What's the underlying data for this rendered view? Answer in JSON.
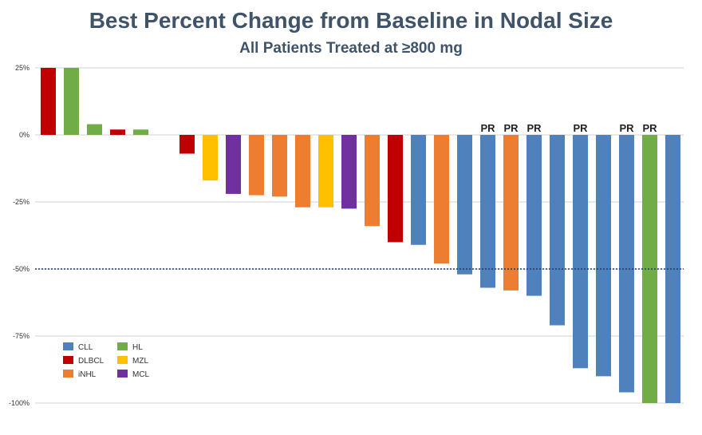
{
  "header": {
    "title": "Best Percent Change from Baseline in Nodal Size",
    "subtitle": "All Patients Treated at ≥800 mg"
  },
  "colors": {
    "CLL": "#4f81bd",
    "DLBCL": "#c00000",
    "iNHL": "#ed7d31",
    "HL": "#70ad47",
    "MZL": "#ffc000",
    "MCL": "#7030a0",
    "reference_line": "#1f3864",
    "gridline": "#d0d0d0"
  },
  "chart_data": {
    "type": "bar",
    "title": "Best Percent Change from Baseline in Nodal Size",
    "subtitle": "All Patients Treated at ≥800 mg",
    "ylim": [
      -100,
      25
    ],
    "yticks": [
      25,
      0,
      -25,
      -50,
      -75,
      -100
    ],
    "ytick_labels": [
      "25%",
      "0%",
      "-25%",
      "-50%",
      "-75%",
      "-100%"
    ],
    "grid": true,
    "reference_line": -50,
    "legend": {
      "placement": "bottom-left",
      "entries": [
        "CLL",
        "DLBCL",
        "iNHL",
        "HL",
        "MZL",
        "MCL"
      ]
    },
    "bars": [
      {
        "group": "DLBCL",
        "value": 25,
        "label": ""
      },
      {
        "group": "HL",
        "value": 25,
        "label": ""
      },
      {
        "group": "HL",
        "value": 4,
        "label": ""
      },
      {
        "group": "DLBCL",
        "value": 2,
        "label": ""
      },
      {
        "group": "HL",
        "value": 2,
        "label": ""
      },
      {
        "group": "",
        "value": 0,
        "label": ""
      },
      {
        "group": "DLBCL",
        "value": -7,
        "label": ""
      },
      {
        "group": "MZL",
        "value": -17,
        "label": ""
      },
      {
        "group": "MCL",
        "value": -22,
        "label": ""
      },
      {
        "group": "iNHL",
        "value": -22.5,
        "label": ""
      },
      {
        "group": "iNHL",
        "value": -23,
        "label": ""
      },
      {
        "group": "iNHL",
        "value": -27,
        "label": ""
      },
      {
        "group": "MZL",
        "value": -27,
        "label": ""
      },
      {
        "group": "MCL",
        "value": -27.5,
        "label": ""
      },
      {
        "group": "iNHL",
        "value": -34,
        "label": ""
      },
      {
        "group": "DLBCL",
        "value": -40,
        "label": ""
      },
      {
        "group": "CLL",
        "value": -41,
        "label": ""
      },
      {
        "group": "iNHL",
        "value": -48,
        "label": ""
      },
      {
        "group": "CLL",
        "value": -52,
        "label": ""
      },
      {
        "group": "CLL",
        "value": -57,
        "label": "PR"
      },
      {
        "group": "iNHL",
        "value": -58,
        "label": "PR"
      },
      {
        "group": "CLL",
        "value": -60,
        "label": "PR"
      },
      {
        "group": "CLL",
        "value": -71,
        "label": ""
      },
      {
        "group": "CLL",
        "value": -87,
        "label": "PR"
      },
      {
        "group": "CLL",
        "value": -90,
        "label": ""
      },
      {
        "group": "CLL",
        "value": -96,
        "label": "PR"
      },
      {
        "group": "HL",
        "value": -100,
        "label": "PR"
      },
      {
        "group": "CLL",
        "value": -100,
        "label": ""
      }
    ]
  }
}
